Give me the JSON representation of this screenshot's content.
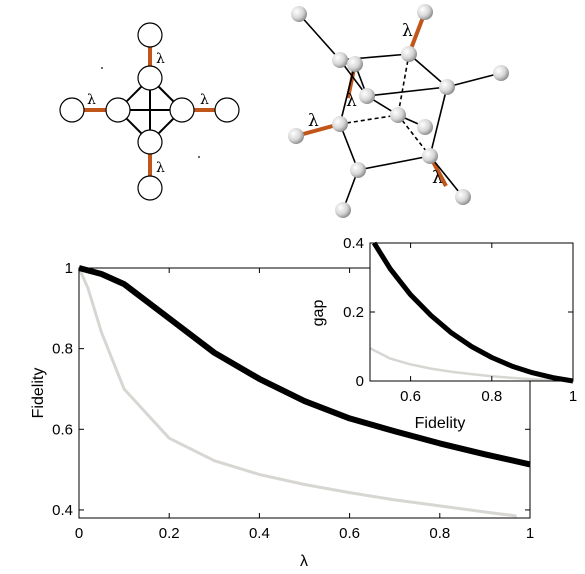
{
  "diagrams": {
    "lambda_symbol": "λ"
  },
  "colors": {
    "coupling_bond": "#c0561a",
    "series_dark": "#000000",
    "series_light": "#d8d6d2",
    "node_fill": "#ffffff"
  },
  "chart_data": [
    {
      "type": "line",
      "xlabel": "λ",
      "ylabel": "Fidelity",
      "xlim": [
        0,
        1
      ],
      "ylim": [
        0.38,
        1.0
      ],
      "xticks": [
        "0",
        "0.2",
        "0.4",
        "0.6",
        "0.8",
        "1"
      ],
      "yticks": [
        "0.4",
        "0.6",
        "0.8",
        "1"
      ],
      "grid": false,
      "series": [
        {
          "color": "#000000",
          "x": [
            0,
            0.05,
            0.1,
            0.2,
            0.3,
            0.4,
            0.5,
            0.6,
            0.7,
            0.8,
            0.9,
            1.0
          ],
          "y": [
            1.0,
            0.985,
            0.96,
            0.875,
            0.79,
            0.725,
            0.67,
            0.627,
            0.595,
            0.565,
            0.538,
            0.513
          ]
        },
        {
          "color": "#d8d6d2",
          "x": [
            0,
            0.02,
            0.05,
            0.1,
            0.2,
            0.3,
            0.4,
            0.5,
            0.6,
            0.7,
            0.8,
            0.9,
            0.97
          ],
          "y": [
            1.0,
            0.95,
            0.84,
            0.7,
            0.578,
            0.522,
            0.488,
            0.463,
            0.443,
            0.425,
            0.41,
            0.395,
            0.385
          ]
        }
      ]
    },
    {
      "type": "line",
      "xlabel": "Fidelity",
      "ylabel": "gap",
      "xlim": [
        0.5,
        1.0
      ],
      "ylim": [
        0,
        0.4
      ],
      "xticks": [
        "0.6",
        "0.8",
        "1"
      ],
      "yticks": [
        "0",
        "0.2",
        "0.4"
      ],
      "grid": false,
      "series": [
        {
          "color": "#000000",
          "x": [
            0.51,
            0.55,
            0.6,
            0.65,
            0.7,
            0.75,
            0.8,
            0.85,
            0.9,
            0.95,
            1.0
          ],
          "y": [
            0.4,
            0.325,
            0.25,
            0.19,
            0.14,
            0.1,
            0.068,
            0.043,
            0.024,
            0.01,
            0.0
          ]
        },
        {
          "color": "#d8d6d2",
          "x": [
            0.5,
            0.55,
            0.6,
            0.65,
            0.7,
            0.75,
            0.8,
            0.85,
            0.9,
            0.95,
            1.0
          ],
          "y": [
            0.095,
            0.065,
            0.048,
            0.036,
            0.027,
            0.02,
            0.014,
            0.009,
            0.005,
            0.002,
            0.0
          ]
        }
      ]
    }
  ]
}
